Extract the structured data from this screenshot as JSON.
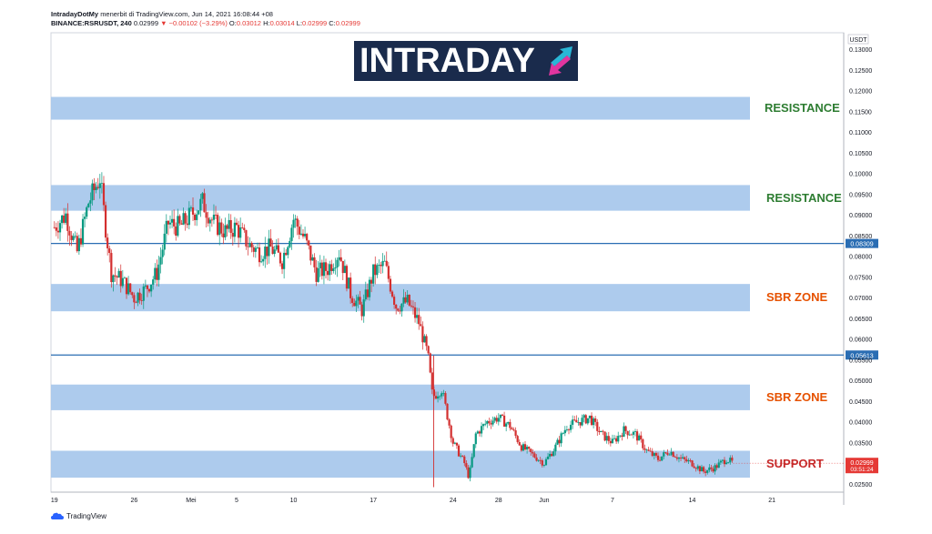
{
  "header": {
    "publisher": "IntradayDotMy",
    "published_line": "menerbit di TradingView.com, Jun 14, 2021 16:08:44 +08",
    "symbol": "BINANCE:RSRUSDT, 240",
    "last": "0.02999",
    "change": "▼ −0.00102 (−3.29%)",
    "o_label": "O:",
    "o": "0.03012",
    "h_label": "H:",
    "h": "0.03014",
    "l_label": "L:",
    "l": "0.02999",
    "c_label": "C:",
    "c": "0.02999"
  },
  "logo": {
    "text": "INTRADAY",
    "icon": "up-down-arrows-icon"
  },
  "footer": {
    "brand": "TradingView",
    "icon": "tradingview-cloud-icon"
  },
  "colors": {
    "zone_fill": "#a9c8ec",
    "line_blue": "#2a6db3",
    "candle_up": "#089981",
    "candle_down": "#d32f2f",
    "price_tag_red": "#e53935",
    "axis_text": "#131722"
  },
  "zones": [
    {
      "label": "RESISTANCE",
      "color": "#2e7d32",
      "low": 0.113,
      "high": 0.1185
    },
    {
      "label": "RESISTANCE",
      "color": "#2e7d32",
      "low": 0.091,
      "high": 0.0972
    },
    {
      "label": "SBR ZONE",
      "color": "#e65100",
      "low": 0.0667,
      "high": 0.0733
    },
    {
      "label": "SBR ZONE",
      "color": "#e65100",
      "low": 0.0428,
      "high": 0.049
    },
    {
      "label": "SUPPORT",
      "color": "#c62828",
      "low": 0.0265,
      "high": 0.033
    }
  ],
  "price_lines": [
    {
      "value": 0.08309,
      "label": "0.08309"
    },
    {
      "value": 0.05613,
      "label": "0.05613"
    }
  ],
  "current_price": {
    "label": "0.02999",
    "countdown": "03:51:24"
  },
  "chart_data": {
    "type": "candlestick",
    "symbol": "BINANCE:RSRUSDT",
    "interval": "240",
    "currency_label": "USDT",
    "y_ticks": [
      "0.13000",
      "0.12500",
      "0.12000",
      "0.11500",
      "0.11000",
      "0.10500",
      "0.10000",
      "0.09500",
      "0.09000",
      "0.08500",
      "0.08000",
      "0.07500",
      "0.07000",
      "0.06500",
      "0.06000",
      "0.05500",
      "0.05000",
      "0.04500",
      "0.04000",
      "0.03500",
      "0.03000",
      "0.02500"
    ],
    "ylim": [
      0.023,
      0.134
    ],
    "x_ticks": [
      "19",
      "26",
      "Mei",
      "5",
      "10",
      "17",
      "24",
      "28",
      "Jun",
      "7",
      "14",
      "21"
    ],
    "x_tick_day_index": [
      0,
      7,
      12,
      16,
      21,
      28,
      35,
      39,
      43,
      49,
      56,
      63
    ],
    "x_range_days": [
      -0.3,
      69.3
    ],
    "series": [
      {
        "day": 0.0,
        "close": 0.087
      },
      {
        "day": 1.0,
        "close": 0.09
      },
      {
        "day": 2.0,
        "close": 0.081
      },
      {
        "day": 3.0,
        "close": 0.093
      },
      {
        "day": 4.0,
        "close": 0.099
      },
      {
        "day": 4.5,
        "close": 0.087
      },
      {
        "day": 5.0,
        "close": 0.076
      },
      {
        "day": 6.0,
        "close": 0.074
      },
      {
        "day": 7.0,
        "close": 0.07
      },
      {
        "day": 8.0,
        "close": 0.072
      },
      {
        "day": 9.0,
        "close": 0.076
      },
      {
        "day": 10.0,
        "close": 0.088
      },
      {
        "day": 11.0,
        "close": 0.087
      },
      {
        "day": 12.0,
        "close": 0.09
      },
      {
        "day": 13.0,
        "close": 0.093
      },
      {
        "day": 14.0,
        "close": 0.088
      },
      {
        "day": 15.0,
        "close": 0.086
      },
      {
        "day": 16.0,
        "close": 0.087
      },
      {
        "day": 17.0,
        "close": 0.083
      },
      {
        "day": 18.0,
        "close": 0.081
      },
      {
        "day": 19.0,
        "close": 0.082
      },
      {
        "day": 20.0,
        "close": 0.079
      },
      {
        "day": 21.0,
        "close": 0.089
      },
      {
        "day": 22.0,
        "close": 0.084
      },
      {
        "day": 23.0,
        "close": 0.076
      },
      {
        "day": 24.0,
        "close": 0.077
      },
      {
        "day": 25.0,
        "close": 0.081
      },
      {
        "day": 26.0,
        "close": 0.071
      },
      {
        "day": 27.0,
        "close": 0.067
      },
      {
        "day": 28.0,
        "close": 0.076
      },
      {
        "day": 29.0,
        "close": 0.078
      },
      {
        "day": 30.0,
        "close": 0.068
      },
      {
        "day": 31.0,
        "close": 0.069
      },
      {
        "day": 32.0,
        "close": 0.064
      },
      {
        "day": 32.8,
        "close": 0.056
      },
      {
        "day": 33.2,
        "close": 0.046
      },
      {
        "day": 34.0,
        "close": 0.048
      },
      {
        "day": 35.0,
        "close": 0.035
      },
      {
        "day": 36.0,
        "close": 0.03
      },
      {
        "day": 36.4,
        "close": 0.0265
      },
      {
        "day": 37.0,
        "close": 0.037
      },
      {
        "day": 38.0,
        "close": 0.04
      },
      {
        "day": 39.0,
        "close": 0.041
      },
      {
        "day": 40.0,
        "close": 0.039
      },
      {
        "day": 41.0,
        "close": 0.034
      },
      {
        "day": 42.0,
        "close": 0.032
      },
      {
        "day": 43.0,
        "close": 0.03
      },
      {
        "day": 44.0,
        "close": 0.034
      },
      {
        "day": 45.0,
        "close": 0.039
      },
      {
        "day": 46.0,
        "close": 0.04
      },
      {
        "day": 47.0,
        "close": 0.041
      },
      {
        "day": 48.0,
        "close": 0.037
      },
      {
        "day": 49.0,
        "close": 0.035
      },
      {
        "day": 50.0,
        "close": 0.038
      },
      {
        "day": 51.0,
        "close": 0.037
      },
      {
        "day": 52.0,
        "close": 0.033
      },
      {
        "day": 53.0,
        "close": 0.031
      },
      {
        "day": 54.0,
        "close": 0.033
      },
      {
        "day": 55.0,
        "close": 0.031
      },
      {
        "day": 56.0,
        "close": 0.03
      },
      {
        "day": 57.0,
        "close": 0.028
      },
      {
        "day": 58.0,
        "close": 0.029
      },
      {
        "day": 59.0,
        "close": 0.031
      },
      {
        "day": 59.6,
        "close": 0.03
      }
    ],
    "grid": false,
    "legend": "none"
  }
}
